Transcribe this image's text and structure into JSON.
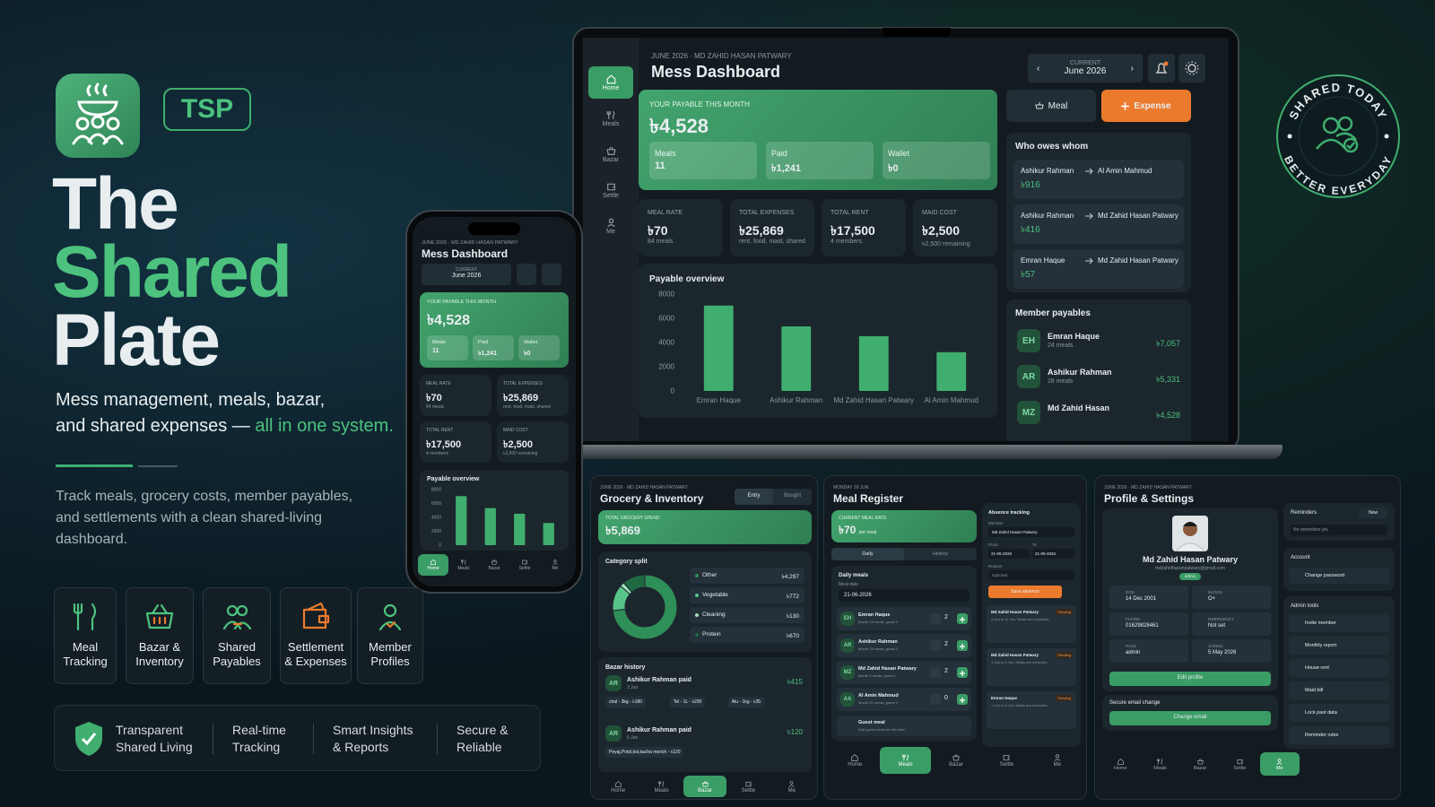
{
  "hero": {
    "badge": "TSP",
    "title_1": "The",
    "title_2": "Shared",
    "title_3": "Plate",
    "tagline_1": "Mess management, meals, bazar,",
    "tagline_2": "and shared expenses —",
    "tagline_highlight": "all in one system.",
    "description": "Track meals, grocery costs, member payables, and settlements with a clean shared-living dashboard."
  },
  "features": [
    "Meal Tracking",
    "Bazar & Inventory",
    "Shared Payables",
    "Settlement & Expenses",
    "Member Profiles"
  ],
  "benefits": [
    "Transparent Shared Living",
    "Real-time Tracking",
    "Smart Insights & Reports",
    "Secure & Reliable"
  ],
  "stamp": {
    "top": "SHARED TODAY",
    "bottom": "BETTER EVERYDAY"
  },
  "nav": [
    "Home",
    "Meals",
    "Bazar",
    "Settle",
    "Me"
  ],
  "dashboard": {
    "eyebrow": "JUNE 2026 · MD ZAHID HASAN PATWARY",
    "title": "Mess Dashboard",
    "period_label": "CURRENT",
    "period": "June 2026",
    "payable": {
      "label": "YOUR PAYABLE THIS MONTH",
      "amount": "৳4,528",
      "items": [
        {
          "label": "Meals",
          "value": "11"
        },
        {
          "label": "Paid",
          "value": "৳1,241"
        },
        {
          "label": "Wallet",
          "value": "৳0"
        }
      ]
    },
    "actions": [
      "Meal",
      "Expense"
    ],
    "stats": [
      {
        "label": "MEAL RATE",
        "value": "৳70",
        "note": "84 meals"
      },
      {
        "label": "TOTAL EXPENSES",
        "value": "৳25,869",
        "note": "rent, food, maid, shared"
      },
      {
        "label": "TOTAL RENT",
        "value": "৳17,500",
        "note": "4 members"
      },
      {
        "label": "MAID COST",
        "value": "৳2,500",
        "note": "৳2,500 remaining"
      }
    ],
    "chart": {
      "title": "Payable overview",
      "categories": [
        "Emran Haque",
        "Ashikur Rahman",
        "Md Zahid Hasan Patwary",
        "Al Amin Mahmud"
      ],
      "values": [
        7057,
        5331,
        4528,
        3200
      ],
      "color": "#3fae6e",
      "ylim": [
        0,
        8000
      ],
      "yticks": [
        0,
        2000,
        4000,
        6000,
        8000
      ]
    },
    "owes": {
      "title": "Who owes whom",
      "rows": [
        {
          "from": "Ashikur Rahman",
          "to": "Al Amin Mahmud",
          "amount": "৳916"
        },
        {
          "from": "Ashikur Rahman",
          "to": "Md Zahid Hasan Patwary",
          "amount": "৳416"
        },
        {
          "from": "Emran Haque",
          "to": "Md Zahid Hasan Patwary",
          "amount": "৳57"
        }
      ]
    },
    "members": {
      "title": "Member payables",
      "rows": [
        {
          "initials": "EH",
          "name": "Emran Haque",
          "meals": "24 meals",
          "amount": "৳7,057"
        },
        {
          "initials": "AR",
          "name": "Ashikur Rahman",
          "meals": "28 meals",
          "amount": "৳5,331"
        },
        {
          "initials": "MZ",
          "name": "Md Zahid Hasan",
          "amount": "৳4,528"
        }
      ]
    }
  },
  "grocery": {
    "eyebrow": "JUNE 2026 · MD ZAHID HASAN PATWARY",
    "title": "Grocery & Inventory",
    "tabs": [
      "Entry",
      "Bought"
    ],
    "total_label": "TOTAL GROCERY SPEND",
    "total": "৳5,869",
    "split_title": "Category split",
    "categories": [
      {
        "name": "Other",
        "value": 4297,
        "label": "৳4,297",
        "color": "#2f8f58"
      },
      {
        "name": "Vegetable",
        "value": 772,
        "label": "৳772",
        "color": "#56c487"
      },
      {
        "name": "Cleaning",
        "value": 130,
        "label": "৳130",
        "color": "#9fe0b9"
      },
      {
        "name": "Protein",
        "value": 670,
        "label": "৳670",
        "color": "#1f6a41"
      }
    ],
    "history_title": "Bazar history",
    "history": [
      {
        "initials": "AR",
        "title": "Ashikur Rahman paid",
        "date": "3 Jun",
        "amount": "৳415",
        "items": [
          "chal - 3kg - ৳180",
          "Tel - 1L - ৳200",
          "Alu - 1kg - ৳35"
        ]
      },
      {
        "initials": "AR",
        "title": "Ashikur Rahman paid",
        "date": "6 Jun",
        "amount": "৳120",
        "items": [
          "Peyaj,Potol,koi,kacha morich - ৳120"
        ]
      }
    ]
  },
  "meals": {
    "eyebrow": "MONDAY 29 JUN",
    "title": "Meal Register",
    "rate_label": "CURRENT MEAL RATE",
    "rate": "৳70",
    "rate_unit": "per meal",
    "tabs": [
      "Daily",
      "History"
    ],
    "daily_title": "Daily meals",
    "date_label": "Meal date",
    "date": "21-06-2026",
    "rows": [
      {
        "initials": "EH",
        "name": "Emran Haque",
        "note": "Month 15 meals, guest 0",
        "count": 2
      },
      {
        "initials": "AR",
        "name": "Ashikur Rahman",
        "note": "Month 28 meals, guest 0",
        "count": 2
      },
      {
        "initials": "MZ",
        "name": "Md Zahid Hasan Patwary",
        "note": "Month 9 meals, guest 0",
        "count": 2
      },
      {
        "initials": "AA",
        "name": "Al Amin Mahmud",
        "note": "Month 21 meals, guest 0",
        "count": 0
      }
    ],
    "guest": {
      "name": "Guest meal",
      "note": "Add guest meals for this date"
    },
    "absence": {
      "title": "Absence tracking",
      "member_label": "Member",
      "member": "Md Zahid Hasan Patwary",
      "from_label": "From",
      "to_label": "To",
      "from": "21-06-2026",
      "to": "21-06-2026",
      "reason_label": "Reason",
      "reason": "Optional",
      "save": "Save absence",
      "entries": [
        {
          "name": "Md Zahid Hasan Patwary",
          "badge": "Pending",
          "note": "4 Jun to 11 Jun. Meals are excluded."
        },
        {
          "name": "Md Zahid Hasan Patwary",
          "badge": "Pending",
          "note": "1 Jun to 5 Jun. Meals are excluded."
        },
        {
          "name": "Emran Haque",
          "badge": "Pending",
          "note": "1 Jun to 8 Jun. Meals are excluded."
        }
      ]
    }
  },
  "profile": {
    "eyebrow": "JUNE 2026 · MD ZAHID HASAN PATWARY",
    "title": "Profile & Settings",
    "name": "Md Zahid Hasan Patwary",
    "email": "mdzahidhasanpatwary@gmail.com",
    "role": "admin",
    "fields": [
      {
        "label": "DOB",
        "value": "14 Dec 2001"
      },
      {
        "label": "BLOOD",
        "value": "O+"
      },
      {
        "label": "PHONE",
        "value": "01629828461"
      },
      {
        "label": "EMERGENCY",
        "value": "Not set"
      },
      {
        "label": "ROLE",
        "value": "admin"
      },
      {
        "label": "JOINED",
        "value": "5 May 2026"
      }
    ],
    "edit": "Edit profile",
    "email_title": "Secure email change",
    "email_button": "Change email",
    "reminders": "Reminders",
    "new": "New",
    "no_reminders": "No reminders yet.",
    "account": "Account",
    "account_items": [
      "Change password"
    ],
    "admin": "Admin tools",
    "admin_items": [
      "Invite member",
      "Monthly report",
      "House rent",
      "Maid bill",
      "Lock past data",
      "Reminder rules"
    ]
  }
}
